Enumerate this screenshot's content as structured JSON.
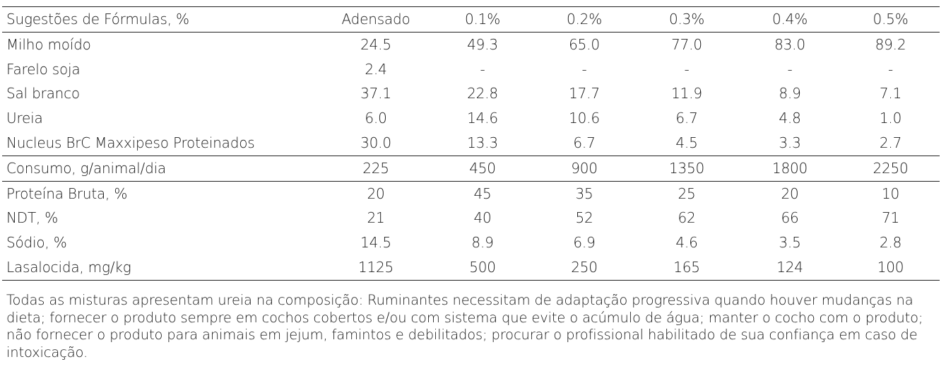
{
  "table": {
    "header": {
      "label": "Sugestões de Fórmulas, %",
      "columns": [
        "Adensado",
        "0.1%",
        "0.2%",
        "0.3%",
        "0.4%",
        "0.5%"
      ]
    },
    "ingredients": [
      {
        "label": "Milho moído",
        "values": [
          "24.5",
          "49.3",
          "65.0",
          "77.0",
          "83.0",
          "89.2"
        ]
      },
      {
        "label": "Farelo soja",
        "values": [
          "2.4",
          "-",
          "-",
          "-",
          "-",
          "-"
        ]
      },
      {
        "label": "Sal branco",
        "values": [
          "37.1",
          "22.8",
          "17.7",
          "11.9",
          "8.9",
          "7.1"
        ]
      },
      {
        "label": "Ureia",
        "values": [
          "6.0",
          "14.6",
          "10.6",
          "6.7",
          "4.8",
          "1.0"
        ]
      },
      {
        "label": "Nucleus BrC Maxxipeso Proteinados",
        "values": [
          "30.0",
          "13.3",
          "6.7",
          "4.5",
          "3.3",
          "2.7"
        ]
      }
    ],
    "consumo": {
      "label": "Consumo, g/animal/dia",
      "values": [
        "225",
        "450",
        "900",
        "1350",
        "1800",
        "2250"
      ]
    },
    "nutrients": [
      {
        "label": "Proteína Bruta, %",
        "values": [
          "20",
          "45",
          "35",
          "25",
          "20",
          "10"
        ]
      },
      {
        "label": "NDT, %",
        "values": [
          "21",
          "40",
          "52",
          "62",
          "66",
          "71"
        ]
      },
      {
        "label": "Sódio, %",
        "values": [
          "14.5",
          "8.9",
          "6.9",
          "4.6",
          "3.5",
          "2.8"
        ]
      },
      {
        "label": "Lasalocida, mg/kg",
        "values": [
          "1125",
          "500",
          "250",
          "165",
          "124",
          "100"
        ]
      }
    ]
  },
  "note": "Todas as misturas apresentam ureia na composição: Ruminantes necessitam de adaptação progressiva quando houver mudanças na dieta; fornecer o produto sempre em cochos cobertos e/ou com sistema que evite o acúmulo de água; manter o cocho com o produto; não fornecer o produto para animais em jejum, famintos e debilitados; procurar o profissional habilitado de sua confiança em caso de intoxicação."
}
